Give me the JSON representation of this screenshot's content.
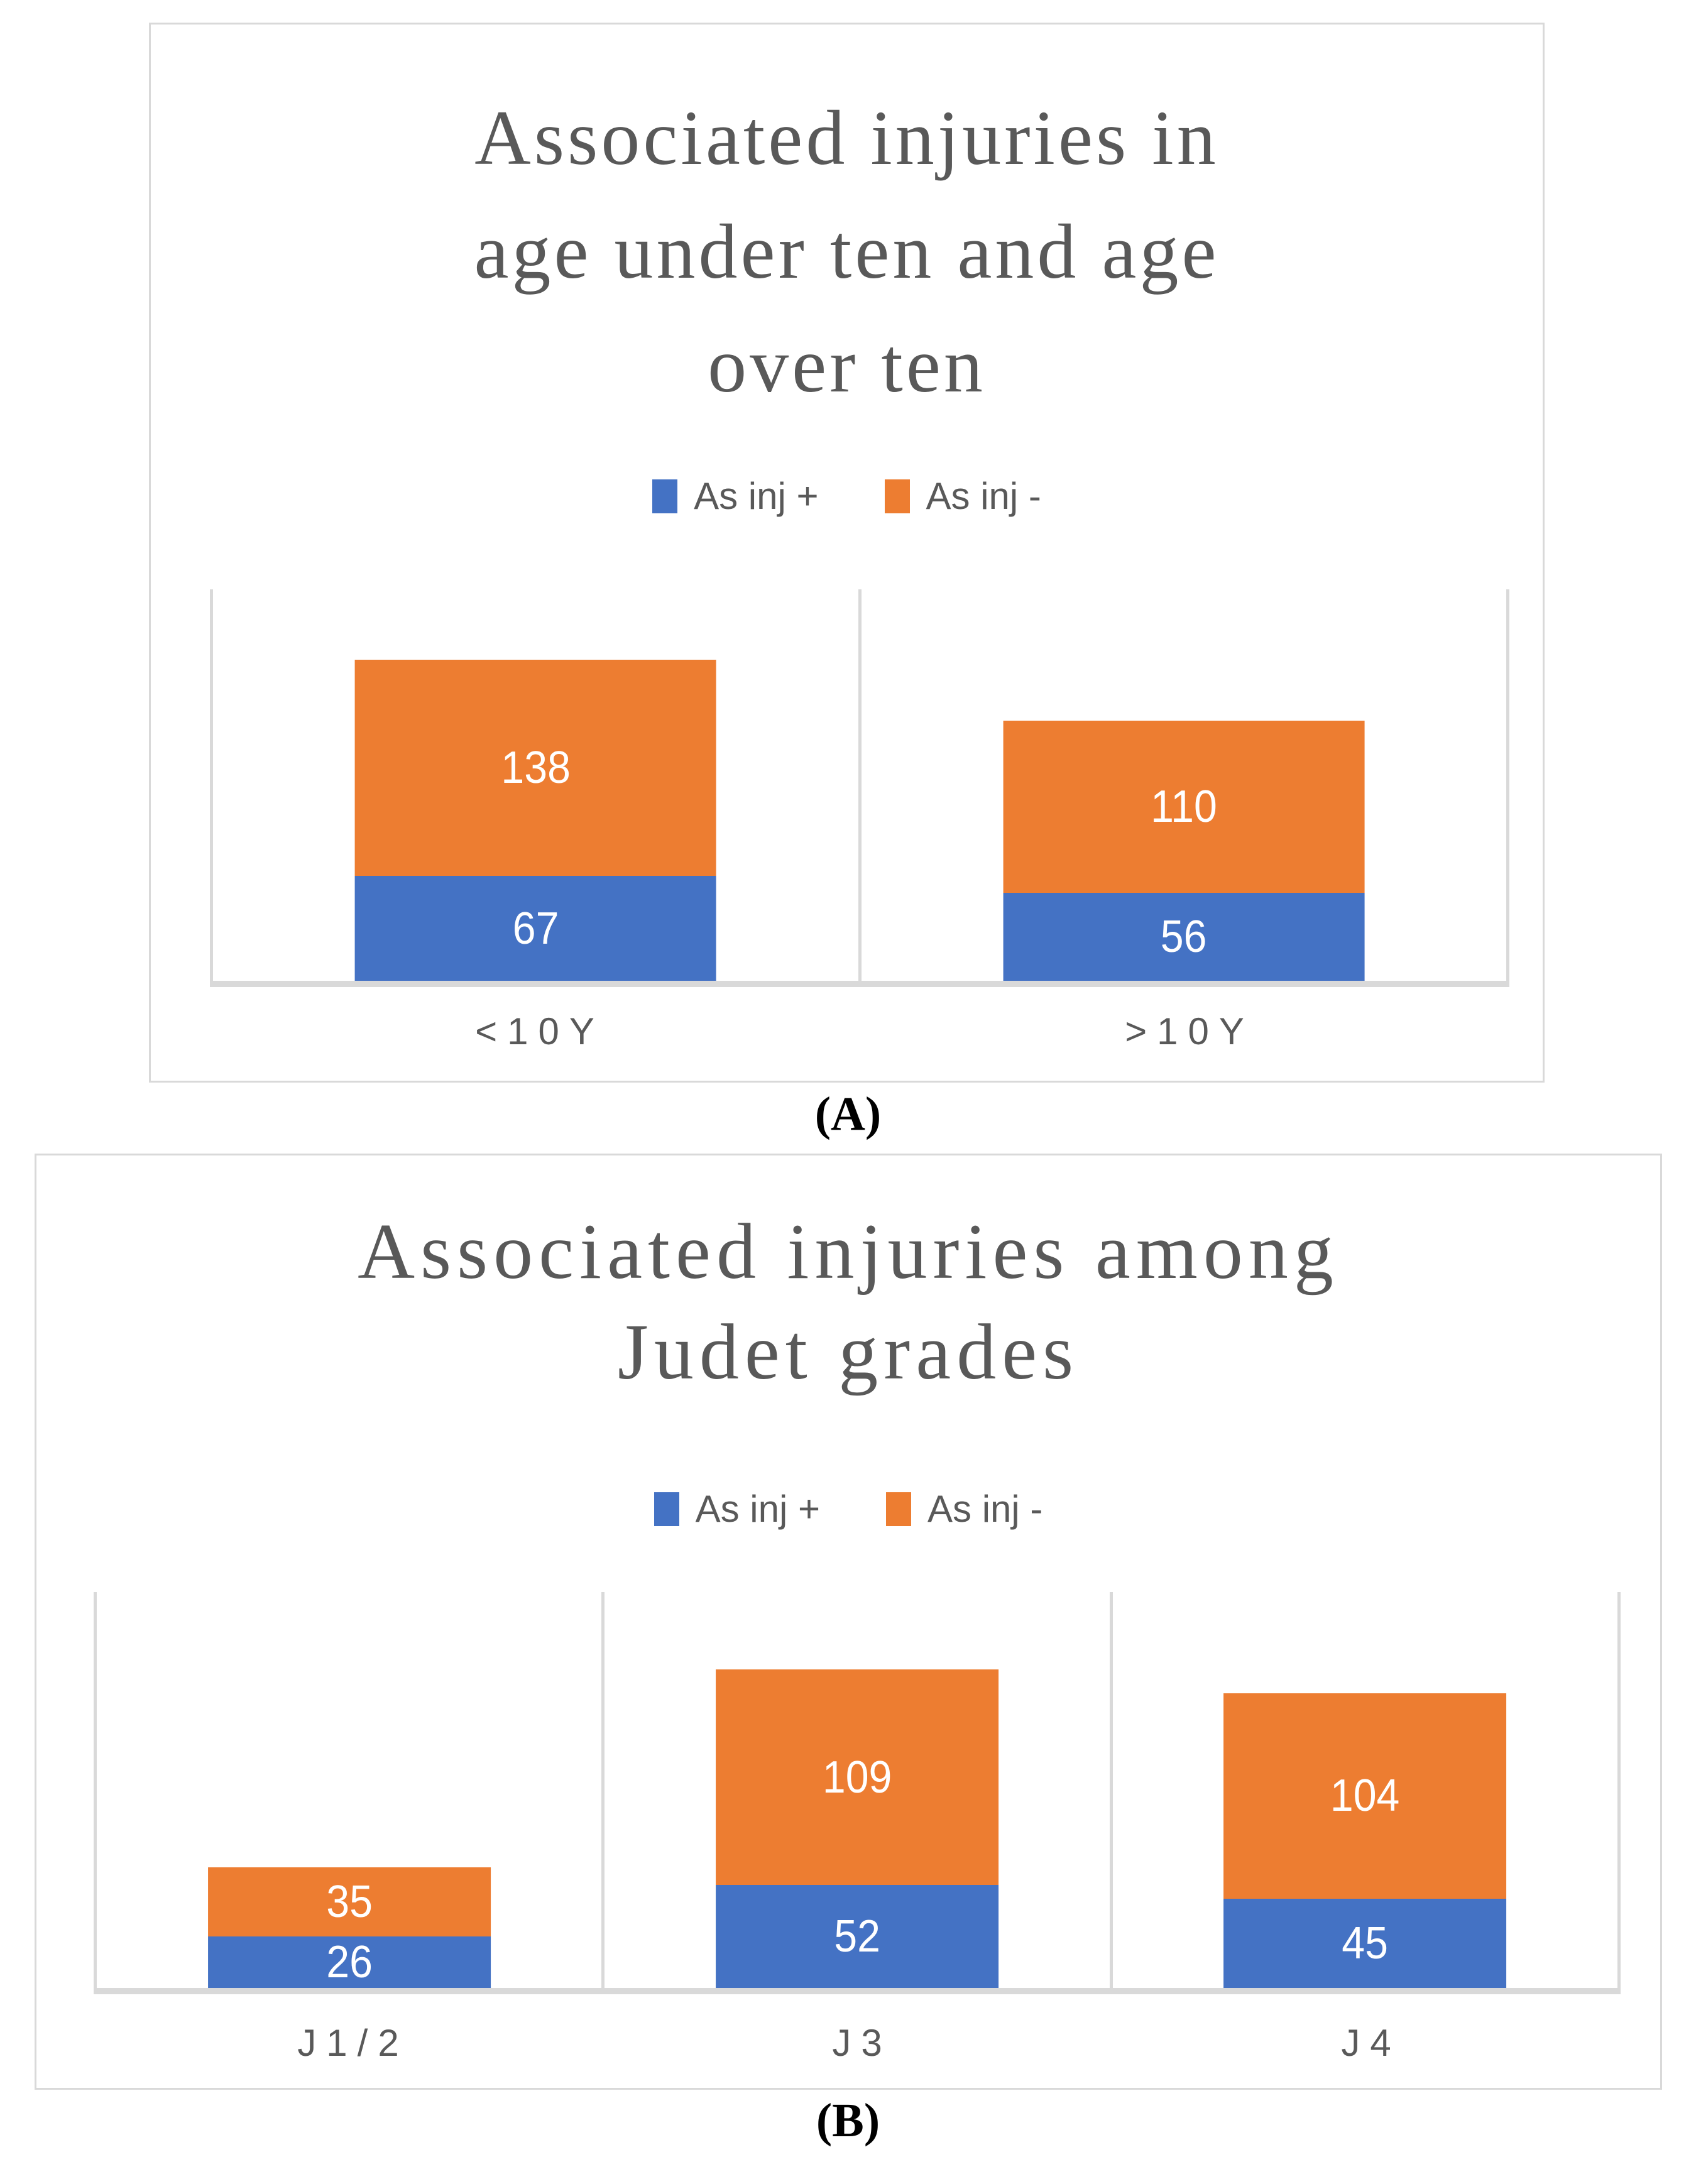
{
  "colors": {
    "series_positive": "#4472C4",
    "series_negative": "#ED7D31",
    "title_text": "#595959",
    "axis_text": "#595959",
    "legend_text": "#595959",
    "gridline": "#D9D9D9",
    "axis_line": "#D9D9D9",
    "panel_border": "#D9D9D9",
    "value_label_text": "#FFFFFF",
    "caption_text": "#000000"
  },
  "chart_data": [
    {
      "type": "bar",
      "stacked": true,
      "title": "Associated injuries in\nage under ten and age\nover ten",
      "categories": [
        "<10Y",
        ">10Y"
      ],
      "series": [
        {
          "name": "As inj +",
          "color": "#4472C4",
          "values": [
            67,
            56
          ]
        },
        {
          "name": "As inj -",
          "color": "#ED7D31",
          "values": [
            138,
            110
          ]
        }
      ],
      "totals": [
        205,
        166
      ],
      "ylim": [
        0,
        250
      ],
      "xlabel": "",
      "ylabel": "",
      "grid": "vertical-category-boundaries",
      "legend_position": "top-center",
      "data_labels": "inside-center-white",
      "figure_label": "(A)"
    },
    {
      "type": "bar",
      "stacked": true,
      "title": "Associated injuries among\nJudet grades",
      "categories": [
        "J1/2",
        "J3",
        "J4"
      ],
      "series": [
        {
          "name": "As inj +",
          "color": "#4472C4",
          "values": [
            26,
            52,
            45
          ]
        },
        {
          "name": "As inj -",
          "color": "#ED7D31",
          "values": [
            35,
            109,
            104
          ]
        }
      ],
      "totals": [
        61,
        161,
        149
      ],
      "ylim": [
        0,
        200
      ],
      "xlabel": "",
      "ylabel": "",
      "grid": "vertical-category-boundaries",
      "legend_position": "top-center",
      "data_labels": "inside-center-white",
      "figure_label": "(B)"
    }
  ]
}
